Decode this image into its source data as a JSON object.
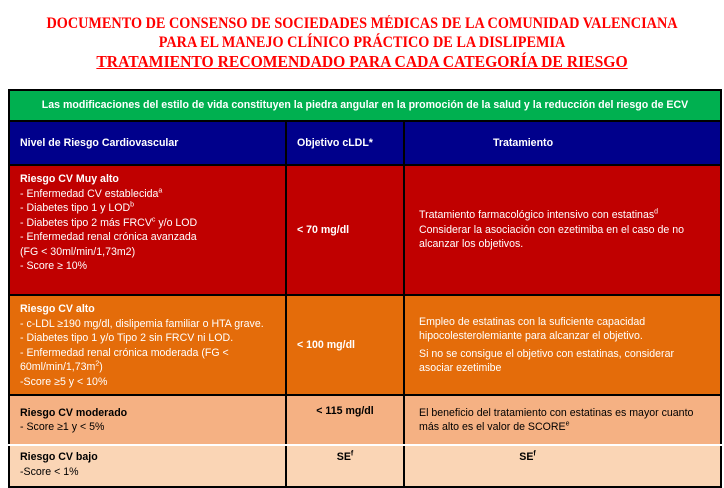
{
  "titles": {
    "line1": "DOCUMENTO DE CONSENSO DE SOCIEDADES MÉDICAS DE LA COMUNIDAD VALENCIANA",
    "line2": "PARA EL MANEJO CLÍNICO PRÁCTICO DE LA DISLIPEMIA",
    "line3": "TRATAMIENTO RECOMENDADO PARA CADA CATEGORÍA DE RIESGO"
  },
  "banner": "Las modificaciones del estilo de vida constituyen la piedra angular en la promoción de la salud y la reducción del riesgo de ECV",
  "headers": {
    "level": "Nivel de Riesgo Cardiovascular",
    "target": "Objetivo  cLDL*",
    "treatment": "Tratamiento"
  },
  "rows": [
    {
      "title": "Riesgo CV Muy alto",
      "items": [
        "- Enfermedad CV establecida",
        "- Diabetes tipo 1 y LOD",
        "- Diabetes tipo 2 más FRCV",
        "y/o LOD",
        "- Enfermedad renal crónica avanzada",
        "(FG < 30ml/min/1,73m2)",
        "- Score  ≥ 10%"
      ],
      "sups": [
        "a",
        "b",
        "c"
      ],
      "target": "< 70 mg/dl",
      "treatment": [
        "Tratamiento farmacológico intensivo con estatinas",
        "Considerar la asociación con ezetimiba en el caso de no alcanzar los objetivos."
      ],
      "treatment_sup": "d",
      "color": "#c00000"
    },
    {
      "title": "Riesgo CV alto",
      "items": [
        "- c-LDL ≥190 mg/dl, dislipemia familiar o HTA grave.",
        "- Diabetes tipo 1 y/o Tipo 2 sin FRCV ni LOD.",
        "- Enfermedad renal crónica moderada (FG < 60ml/min/1,73m",
        ")",
        "-Score ≥5  y < 10%"
      ],
      "sup": "2",
      "target": "< 100 mg/dl",
      "treatment": [
        "Empleo de estatinas  con la suficiente capacidad hipocolesterolemiante para alcanzar el objetivo.",
        "Si no se consigue el objetivo con estatinas, considerar asociar ezetimibe"
      ],
      "color": "#e46c0a"
    },
    {
      "title": "Riesgo CV moderado",
      "items": [
        "- Score ≥1 y < 5%"
      ],
      "target": "< 115 mg/dl",
      "treatment": [
        "El beneficio del tratamiento con estatinas es mayor cuanto más alto es el valor de SCORE"
      ],
      "treatment_sup": "e",
      "color": "#f5b183"
    },
    {
      "title": "Riesgo CV bajo",
      "items": [
        "-Score < 1%"
      ],
      "target": "SE",
      "target_sup": "f",
      "treatment": [
        "SE"
      ],
      "treatment_sup": "f",
      "color": "#fad5b5"
    }
  ]
}
